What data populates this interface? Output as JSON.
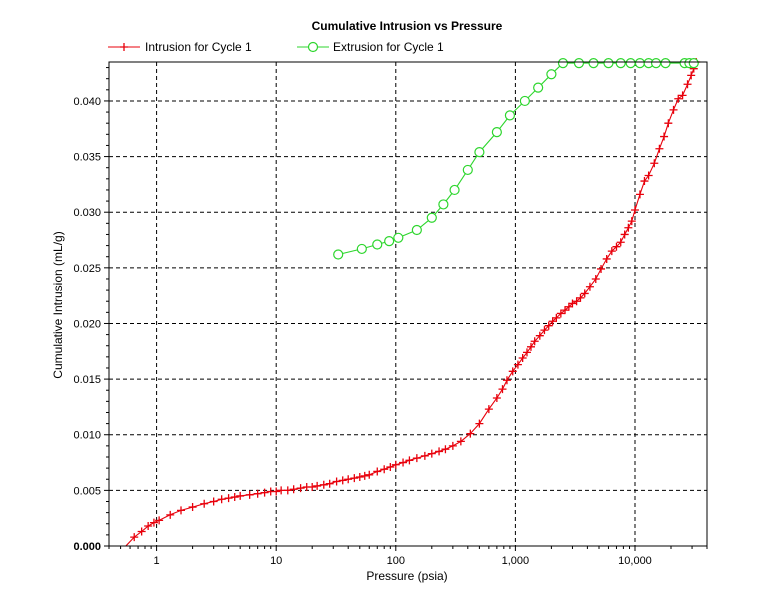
{
  "chart_data": {
    "type": "line",
    "title": "Cumulative Intrusion vs Pressure",
    "xlabel": "Pressure (psia)",
    "ylabel": "Cumulative Intrusion (mL/g)",
    "x_scale": "log",
    "xlim": [
      0.4,
      40000
    ],
    "ylim": [
      0,
      0.0435
    ],
    "x_ticks": [
      {
        "value": 1,
        "label": "1"
      },
      {
        "value": 10,
        "label": "10"
      },
      {
        "value": 100,
        "label": "100"
      },
      {
        "value": 1000,
        "label": "1,000"
      },
      {
        "value": 10000,
        "label": "10,000"
      }
    ],
    "y_ticks": [
      {
        "value": 0,
        "label": "0.000"
      },
      {
        "value": 0.005,
        "label": "0.005"
      },
      {
        "value": 0.01,
        "label": "0.010"
      },
      {
        "value": 0.015,
        "label": "0.015"
      },
      {
        "value": 0.02,
        "label": "0.020"
      },
      {
        "value": 0.025,
        "label": "0.025"
      },
      {
        "value": 0.03,
        "label": "0.030"
      },
      {
        "value": 0.035,
        "label": "0.035"
      },
      {
        "value": 0.04,
        "label": "0.040"
      }
    ],
    "grid": true,
    "legend_position": "top-left",
    "series": [
      {
        "name": "Intrusion for Cycle 1",
        "color": "#e8000b",
        "marker": "plus",
        "points": [
          [
            0.5,
            -0.0005
          ],
          [
            0.65,
            0.0008
          ],
          [
            0.75,
            0.0013
          ],
          [
            0.85,
            0.0018
          ],
          [
            0.95,
            0.0021
          ],
          [
            1.05,
            0.0023
          ],
          [
            1.3,
            0.0028
          ],
          [
            1.6,
            0.0032
          ],
          [
            2.0,
            0.0035
          ],
          [
            2.5,
            0.0038
          ],
          [
            3.0,
            0.004
          ],
          [
            3.5,
            0.0042
          ],
          [
            4.0,
            0.0043
          ],
          [
            4.5,
            0.0044
          ],
          [
            5.0,
            0.0045
          ],
          [
            6.0,
            0.0046
          ],
          [
            7.0,
            0.0047
          ],
          [
            8.0,
            0.0048
          ],
          [
            9.0,
            0.0049
          ],
          [
            10.0,
            0.0049
          ],
          [
            11.0,
            0.005
          ],
          [
            12.5,
            0.005
          ],
          [
            14.0,
            0.0051
          ],
          [
            16.0,
            0.0052
          ],
          [
            18.0,
            0.0053
          ],
          [
            20.0,
            0.0053
          ],
          [
            22.0,
            0.0054
          ],
          [
            25.0,
            0.0055
          ],
          [
            28.0,
            0.0056
          ],
          [
            32.0,
            0.0058
          ],
          [
            36.0,
            0.0059
          ],
          [
            40.0,
            0.006
          ],
          [
            45.0,
            0.0061
          ],
          [
            50.0,
            0.0062
          ],
          [
            55.0,
            0.0063
          ],
          [
            60.0,
            0.0064
          ],
          [
            70.0,
            0.0067
          ],
          [
            80.0,
            0.0069
          ],
          [
            90.0,
            0.0071
          ],
          [
            100.0,
            0.0073
          ],
          [
            115.0,
            0.0075
          ],
          [
            130.0,
            0.0077
          ],
          [
            150.0,
            0.0079
          ],
          [
            175.0,
            0.0081
          ],
          [
            200.0,
            0.0083
          ],
          [
            230.0,
            0.0085
          ],
          [
            260.0,
            0.0087
          ],
          [
            300.0,
            0.009
          ],
          [
            350.0,
            0.0094
          ],
          [
            420.0,
            0.0101
          ],
          [
            500.0,
            0.011
          ],
          [
            600.0,
            0.0123
          ],
          [
            700.0,
            0.0133
          ],
          [
            780.0,
            0.0141
          ],
          [
            850.0,
            0.0149
          ],
          [
            950.0,
            0.0157
          ],
          [
            1050.0,
            0.0163
          ],
          [
            1150.0,
            0.0169
          ],
          [
            1250.0,
            0.0174
          ],
          [
            1350.0,
            0.0179
          ],
          [
            1450.0,
            0.0184
          ],
          [
            1600.0,
            0.0189
          ],
          [
            1750.0,
            0.0194
          ],
          [
            1900.0,
            0.0198
          ],
          [
            2050.0,
            0.0202
          ],
          [
            2200.0,
            0.0205
          ],
          [
            2400.0,
            0.0209
          ],
          [
            2600.0,
            0.0212
          ],
          [
            2800.0,
            0.0215
          ],
          [
            3000.0,
            0.0218
          ],
          [
            3250.0,
            0.022
          ],
          [
            3500.0,
            0.0223
          ],
          [
            3800.0,
            0.0227
          ],
          [
            4200.0,
            0.0233
          ],
          [
            4700.0,
            0.024
          ],
          [
            5200.0,
            0.0249
          ],
          [
            5800.0,
            0.0258
          ],
          [
            6400.0,
            0.0265
          ],
          [
            7000.0,
            0.0269
          ],
          [
            7600.0,
            0.0273
          ],
          [
            8200.0,
            0.028
          ],
          [
            8800.0,
            0.0286
          ],
          [
            9400.0,
            0.0292
          ],
          [
            10000.0,
            0.0302
          ],
          [
            11000.0,
            0.0316
          ],
          [
            12000.0,
            0.0328
          ],
          [
            13000.0,
            0.0333
          ],
          [
            14500.0,
            0.0344
          ],
          [
            16000.0,
            0.0357
          ],
          [
            17500.0,
            0.0368
          ],
          [
            19000.0,
            0.038
          ],
          [
            21000.0,
            0.0392
          ],
          [
            23000.0,
            0.0402
          ],
          [
            25000.0,
            0.0405
          ],
          [
            27500.0,
            0.0415
          ],
          [
            29500.0,
            0.0423
          ],
          [
            31000.0,
            0.0429
          ],
          [
            32500.0,
            0.0435
          ]
        ]
      },
      {
        "name": "Extrusion for Cycle 1",
        "color": "#2dd62d",
        "marker": "circle",
        "points": [
          [
            33.0,
            0.0262
          ],
          [
            52.0,
            0.0267
          ],
          [
            70.0,
            0.0271
          ],
          [
            88.0,
            0.0274
          ],
          [
            105.0,
            0.0277
          ],
          [
            150.0,
            0.0284
          ],
          [
            200.0,
            0.0295
          ],
          [
            250.0,
            0.0307
          ],
          [
            310.0,
            0.032
          ],
          [
            400.0,
            0.0338
          ],
          [
            500.0,
            0.0354
          ],
          [
            700.0,
            0.0372
          ],
          [
            900.0,
            0.0387
          ],
          [
            1200.0,
            0.04
          ],
          [
            1550.0,
            0.0412
          ],
          [
            2000.0,
            0.0424
          ],
          [
            2500.0,
            0.0434
          ],
          [
            3400.0,
            0.0434
          ],
          [
            4500.0,
            0.0434
          ],
          [
            6000.0,
            0.0434
          ],
          [
            7600.0,
            0.0434
          ],
          [
            9200.0,
            0.0434
          ],
          [
            11000.0,
            0.0434
          ],
          [
            13000.0,
            0.0434
          ],
          [
            15000.0,
            0.0434
          ],
          [
            18000.0,
            0.0434
          ],
          [
            26000.0,
            0.0434
          ],
          [
            28500.0,
            0.0434
          ],
          [
            31000.0,
            0.0434
          ]
        ]
      }
    ]
  }
}
